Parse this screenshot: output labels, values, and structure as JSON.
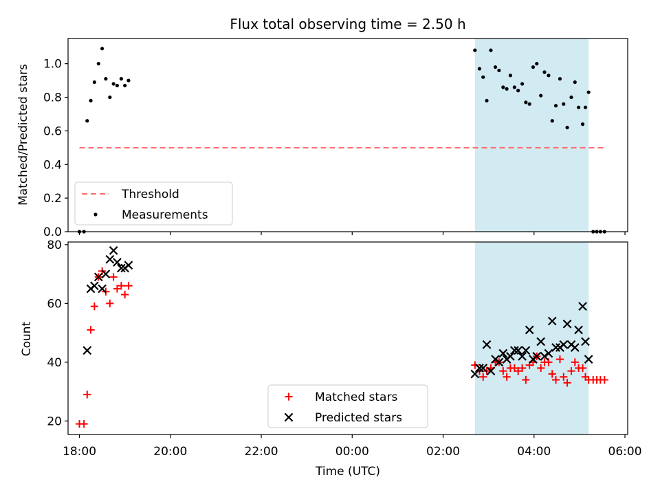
{
  "chart_data": [
    {
      "type": "scatter",
      "title": "Flux total observing time = 2.50 h",
      "xlabel": "",
      "ylabel": "Matched/Predicted stars",
      "x_unit": "hours since 18:00 UTC",
      "xlim": [
        -0.25,
        12.06
      ],
      "ylim": [
        0.0,
        1.15
      ],
      "yticks": [
        0.0,
        0.2,
        0.4,
        0.6,
        0.8,
        1.0
      ],
      "xticks": [
        0,
        2,
        4,
        6,
        8,
        10,
        12
      ],
      "highlight_span": {
        "x0": 8.7,
        "x1": 11.2,
        "color": "#add8e6"
      },
      "legend": {
        "placement": "lower-left",
        "entries": [
          "Threshold",
          "Measurements"
        ]
      },
      "threshold": {
        "name": "Threshold",
        "y": 0.5,
        "x0": 0.0,
        "x1": 11.55,
        "color": "#ff6b6b",
        "style": "dashed"
      },
      "series": [
        {
          "name": "Measurements",
          "color": "#000000",
          "marker": "dot",
          "points": [
            [
              0.0,
              0.0
            ],
            [
              0.1,
              0.0
            ],
            [
              0.17,
              0.66
            ],
            [
              0.25,
              0.78
            ],
            [
              0.33,
              0.89
            ],
            [
              0.42,
              1.0
            ],
            [
              0.5,
              1.09
            ],
            [
              0.58,
              0.91
            ],
            [
              0.67,
              0.8
            ],
            [
              0.75,
              0.88
            ],
            [
              0.83,
              0.87
            ],
            [
              0.92,
              0.91
            ],
            [
              1.0,
              0.87
            ],
            [
              1.08,
              0.9
            ],
            [
              8.7,
              1.08
            ],
            [
              8.8,
              0.97
            ],
            [
              8.88,
              0.92
            ],
            [
              8.96,
              0.78
            ],
            [
              9.05,
              1.08
            ],
            [
              9.15,
              0.98
            ],
            [
              9.23,
              0.96
            ],
            [
              9.32,
              0.86
            ],
            [
              9.4,
              0.85
            ],
            [
              9.48,
              0.93
            ],
            [
              9.57,
              0.86
            ],
            [
              9.65,
              0.84
            ],
            [
              9.74,
              0.88
            ],
            [
              9.82,
              0.77
            ],
            [
              9.9,
              0.76
            ],
            [
              9.98,
              0.98
            ],
            [
              10.06,
              1.0
            ],
            [
              10.15,
              0.81
            ],
            [
              10.23,
              0.95
            ],
            [
              10.32,
              0.93
            ],
            [
              10.4,
              0.66
            ],
            [
              10.48,
              0.75
            ],
            [
              10.57,
              0.91
            ],
            [
              10.65,
              0.76
            ],
            [
              10.73,
              0.62
            ],
            [
              10.82,
              0.8
            ],
            [
              10.9,
              0.89
            ],
            [
              10.98,
              0.74
            ],
            [
              11.07,
              0.64
            ],
            [
              11.13,
              0.74
            ],
            [
              11.2,
              0.83
            ],
            [
              11.3,
              0.0
            ],
            [
              11.38,
              0.0
            ],
            [
              11.46,
              0.0
            ],
            [
              11.55,
              0.0
            ]
          ]
        }
      ]
    },
    {
      "type": "scatter",
      "title": "",
      "xlabel": "Time (UTC)",
      "ylabel": "Count",
      "x_unit": "hours since 18:00 UTC",
      "xlim": [
        -0.25,
        12.06
      ],
      "ylim": [
        15.4,
        80.9
      ],
      "yticks": [
        20,
        40,
        60,
        80
      ],
      "xticks": [
        0,
        2,
        4,
        6,
        8,
        10,
        12
      ],
      "xtick_labels": [
        "18:00",
        "20:00",
        "22:00",
        "00:00",
        "02:00",
        "04:00",
        "06:00"
      ],
      "highlight_span": {
        "x0": 8.7,
        "x1": 11.2,
        "color": "#add8e6"
      },
      "legend": {
        "placement": "lower-center",
        "entries": [
          "Matched stars",
          "Predicted stars"
        ]
      },
      "series": [
        {
          "name": "Matched stars",
          "color": "#ff0000",
          "marker": "plus",
          "points": [
            [
              0.0,
              19
            ],
            [
              0.1,
              19
            ],
            [
              0.17,
              29
            ],
            [
              0.25,
              51
            ],
            [
              0.33,
              59
            ],
            [
              0.42,
              69
            ],
            [
              0.5,
              71
            ],
            [
              0.58,
              64
            ],
            [
              0.67,
              60
            ],
            [
              0.75,
              69
            ],
            [
              0.83,
              65
            ],
            [
              0.92,
              66
            ],
            [
              1.0,
              63
            ],
            [
              1.08,
              66
            ],
            [
              8.7,
              39
            ],
            [
              8.8,
              37
            ],
            [
              8.88,
              35
            ],
            [
              8.96,
              37
            ],
            [
              9.05,
              38
            ],
            [
              9.15,
              40
            ],
            [
              9.23,
              40
            ],
            [
              9.32,
              37
            ],
            [
              9.4,
              35
            ],
            [
              9.48,
              38
            ],
            [
              9.57,
              38
            ],
            [
              9.65,
              37
            ],
            [
              9.74,
              38
            ],
            [
              9.82,
              34
            ],
            [
              9.9,
              39
            ],
            [
              9.98,
              40
            ],
            [
              10.06,
              42
            ],
            [
              10.15,
              38
            ],
            [
              10.23,
              40
            ],
            [
              10.32,
              40
            ],
            [
              10.4,
              36
            ],
            [
              10.48,
              34
            ],
            [
              10.57,
              41
            ],
            [
              10.65,
              35
            ],
            [
              10.73,
              33
            ],
            [
              10.82,
              37
            ],
            [
              10.9,
              40
            ],
            [
              10.98,
              38
            ],
            [
              11.07,
              38
            ],
            [
              11.13,
              35
            ],
            [
              11.2,
              34
            ],
            [
              11.3,
              34
            ],
            [
              11.38,
              34
            ],
            [
              11.46,
              34
            ],
            [
              11.55,
              34
            ]
          ]
        },
        {
          "name": "Predicted stars",
          "color": "#000000",
          "marker": "x",
          "points": [
            [
              0.17,
              44
            ],
            [
              0.25,
              65
            ],
            [
              0.33,
              66
            ],
            [
              0.42,
              69
            ],
            [
              0.5,
              65
            ],
            [
              0.58,
              70
            ],
            [
              0.67,
              75
            ],
            [
              0.75,
              78
            ],
            [
              0.83,
              74
            ],
            [
              0.92,
              72
            ],
            [
              1.0,
              72
            ],
            [
              1.08,
              73
            ],
            [
              8.7,
              36
            ],
            [
              8.8,
              38
            ],
            [
              8.88,
              38
            ],
            [
              8.96,
              46
            ],
            [
              9.05,
              37
            ],
            [
              9.15,
              41
            ],
            [
              9.23,
              40
            ],
            [
              9.32,
              43
            ],
            [
              9.4,
              41
            ],
            [
              9.48,
              42
            ],
            [
              9.57,
              44
            ],
            [
              9.65,
              44
            ],
            [
              9.74,
              42
            ],
            [
              9.82,
              44
            ],
            [
              9.9,
              51
            ],
            [
              9.98,
              41
            ],
            [
              10.06,
              42
            ],
            [
              10.15,
              47
            ],
            [
              10.23,
              42
            ],
            [
              10.32,
              43
            ],
            [
              10.4,
              54
            ],
            [
              10.48,
              45
            ],
            [
              10.57,
              45
            ],
            [
              10.65,
              46
            ],
            [
              10.73,
              53
            ],
            [
              10.82,
              46
            ],
            [
              10.9,
              45
            ],
            [
              10.98,
              51
            ],
            [
              11.07,
              59
            ],
            [
              11.13,
              47
            ],
            [
              11.2,
              41
            ]
          ]
        }
      ]
    }
  ]
}
